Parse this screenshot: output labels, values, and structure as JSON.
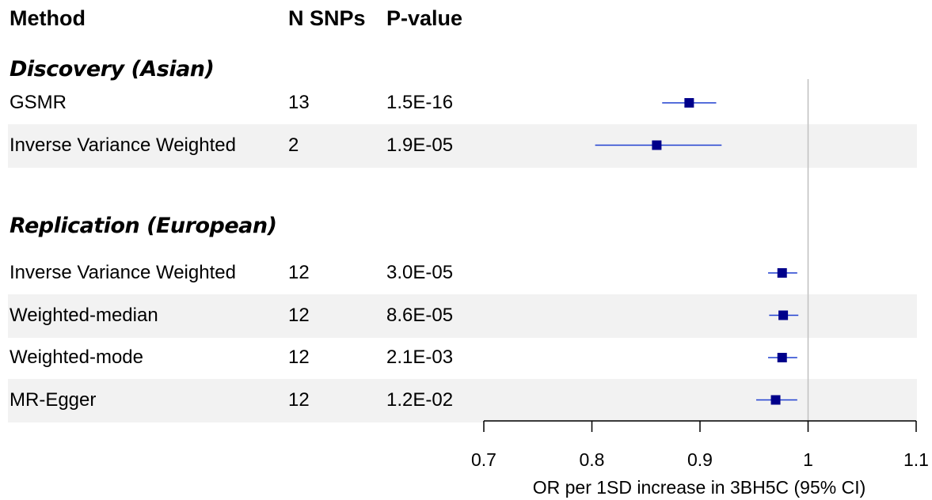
{
  "headers": {
    "method": "Method",
    "nsnps": "N SNPs",
    "pvalue": "P-value"
  },
  "chart_data": {
    "type": "forest",
    "xlabel": "OR per 1SD increase in 3BH5C (95% CI)",
    "xlim": [
      0.7,
      1.1
    ],
    "xticks": [
      "0.7",
      "0.8",
      "0.9",
      "1",
      "1.1"
    ],
    "reference_line": 1,
    "groups": [
      {
        "title": "Discovery (Asian)",
        "rows": [
          {
            "method": "GSMR",
            "n_snps": "13",
            "p_value": "1.5E-16",
            "or": 0.89,
            "lower": 0.865,
            "upper": 0.915,
            "shaded": false
          },
          {
            "method": "Inverse Variance Weighted",
            "n_snps": "2",
            "p_value": "1.9E-05",
            "or": 0.86,
            "lower": 0.803,
            "upper": 0.92,
            "shaded": true
          }
        ]
      },
      {
        "title": "Replication (European)",
        "rows": [
          {
            "method": "Inverse Variance Weighted",
            "n_snps": "12",
            "p_value": "3.0E-05",
            "or": 0.976,
            "lower": 0.963,
            "upper": 0.99,
            "shaded": false
          },
          {
            "method": "Weighted-median",
            "n_snps": "12",
            "p_value": "8.6E-05",
            "or": 0.977,
            "lower": 0.964,
            "upper": 0.991,
            "shaded": true
          },
          {
            "method": "Weighted-mode",
            "n_snps": "12",
            "p_value": "2.1E-03",
            "or": 0.976,
            "lower": 0.963,
            "upper": 0.99,
            "shaded": false
          },
          {
            "method": "MR-Egger",
            "n_snps": "12",
            "p_value": "1.2E-02",
            "or": 0.97,
            "lower": 0.952,
            "upper": 0.99,
            "shaded": true
          }
        ]
      }
    ],
    "colors": {
      "point": "#00008b",
      "ci_line": "#1f3fcf",
      "band": "#f2f2f2",
      "ref_line": "#bfbfbf",
      "axis": "#000000"
    }
  }
}
